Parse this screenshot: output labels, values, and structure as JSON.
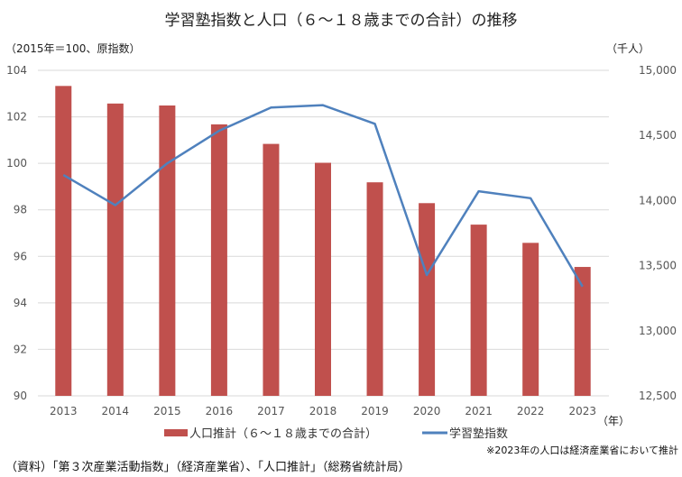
{
  "chart_data": {
    "type": "bar+line",
    "title": "学習塾指数と人口（６～１８歳までの合計）の推移",
    "ylabel_left": "（2015年＝100、原指数）",
    "ylabel_right": "（千人）",
    "xlabel": "（年）",
    "categories": [
      "2013",
      "2014",
      "2015",
      "2016",
      "2017",
      "2018",
      "2019",
      "2020",
      "2021",
      "2022",
      "2023"
    ],
    "left_axis": {
      "range": [
        90,
        104
      ],
      "ticks": [
        "90",
        "92",
        "94",
        "96",
        "98",
        "100",
        "102",
        "104"
      ]
    },
    "right_axis": {
      "range": [
        12500,
        15000
      ],
      "ticks": [
        "12,500",
        "13,000",
        "13,500",
        "14,000",
        "14,500",
        "15,000"
      ]
    },
    "grid": true,
    "legend_position": "bottom",
    "series": [
      {
        "name": "人口推計（６～１８歳までの合計）",
        "type": "bar",
        "axis": "right",
        "color": "#C0504D",
        "values": [
          14880,
          14745,
          14730,
          14585,
          14435,
          14290,
          14140,
          13980,
          13815,
          13675,
          13490
        ]
      },
      {
        "name": "学習塾指数",
        "type": "line",
        "axis": "left",
        "color": "#4F81BD",
        "values": [
          99.5,
          98.2,
          100.0,
          101.4,
          102.4,
          102.5,
          101.7,
          95.2,
          98.8,
          98.5,
          94.7
        ]
      }
    ],
    "note": "※2023年の人口は経済産業省において推計",
    "source": "（資料）「第３次産業活動指数」（経済産業省）、「人口推計」（総務省統計局）"
  }
}
